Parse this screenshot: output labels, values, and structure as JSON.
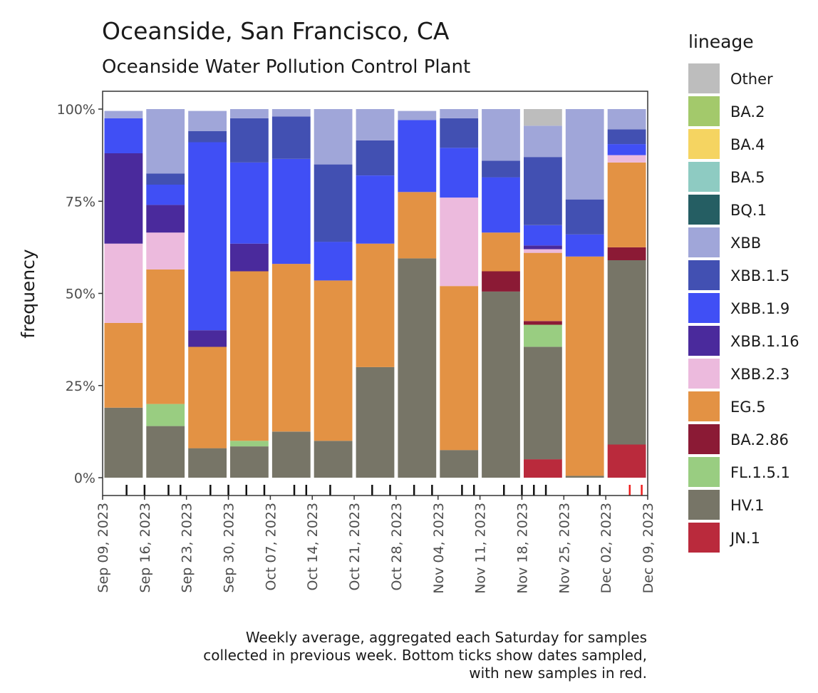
{
  "chart_data": {
    "type": "stacked-bar",
    "title": "Oceanside, San Francisco, CA",
    "subtitle": "Oceanside Water Pollution Control Plant",
    "ylabel": "frequency",
    "xlabel": "",
    "ylim": [
      0,
      1
    ],
    "yticks": [
      "0%",
      "25%",
      "50%",
      "75%",
      "100%"
    ],
    "x_tick_labels": [
      "Sep 09, 2023",
      "Sep 16, 2023",
      "Sep 23, 2023",
      "Sep 30, 2023",
      "Oct 07, 2023",
      "Oct 14, 2023",
      "Oct 21, 2023",
      "Oct 28, 2023",
      "Nov 04, 2023",
      "Nov 11, 2023",
      "Nov 18, 2023",
      "Nov 25, 2023",
      "Dec 02, 2023",
      "Dec 09, 2023"
    ],
    "legend_title": "lineage",
    "legend_position": "right",
    "caption": [
      "Weekly average, aggregated each Saturday for samples",
      "collected in previous week. Bottom ticks show dates sampled,",
      "with new samples in red."
    ],
    "lineages": [
      "Other",
      "BA.2",
      "BA.4",
      "BA.5",
      "BQ.1",
      "XBB",
      "XBB.1.5",
      "XBB.1.9",
      "XBB.1.16",
      "XBB.2.3",
      "EG.5",
      "BA.2.86",
      "FL.1.5.1",
      "HV.1",
      "JN.1"
    ],
    "colors": {
      "Other": "#bdbdbd",
      "BA.2": "#a3c96b",
      "BA.4": "#f5d461",
      "BA.5": "#8ecbc2",
      "BQ.1": "#255e63",
      "XBB": "#a0a6d9",
      "XBB.1.5": "#4250b2",
      "XBB.1.9": "#404ff5",
      "XBB.1.16": "#4a2a9c",
      "XBB.2.3": "#ecbadd",
      "EG.5": "#e39244",
      "BA.2.86": "#8b1a35",
      "FL.1.5.1": "#99cd81",
      "HV.1": "#777567",
      "JN.1": "#ba2a3c"
    },
    "weeks": [
      "Sep 16, 2023",
      "Sep 23, 2023",
      "Sep 30, 2023",
      "Oct 07, 2023",
      "Oct 14, 2023",
      "Oct 21, 2023",
      "Oct 28, 2023",
      "Nov 04, 2023",
      "Nov 11, 2023",
      "Nov 18, 2023",
      "Nov 25, 2023",
      "Dec 02, 2023",
      "Dec 09, 2023"
    ],
    "series": [
      {
        "name": "JN.1",
        "values": [
          0,
          0,
          0,
          0,
          0,
          0,
          0,
          0,
          0,
          0,
          0.05,
          0,
          0.09
        ]
      },
      {
        "name": "HV.1",
        "values": [
          0.19,
          0.14,
          0.08,
          0.085,
          0.125,
          0.1,
          0.3,
          0.595,
          0.075,
          0.505,
          0.305,
          0.005,
          0.5
        ]
      },
      {
        "name": "FL.1.5.1",
        "values": [
          0,
          0.06,
          0,
          0.015,
          0,
          0,
          0,
          0,
          0,
          0,
          0.06,
          0,
          0
        ]
      },
      {
        "name": "BA.2.86",
        "values": [
          0,
          0,
          0,
          0,
          0,
          0,
          0,
          0,
          0,
          0.055,
          0.01,
          0,
          0.035
        ]
      },
      {
        "name": "EG.5",
        "values": [
          0.23,
          0.365,
          0.275,
          0.46,
          0.455,
          0.435,
          0.335,
          0.18,
          0.445,
          0.105,
          0.185,
          0.595,
          0.23
        ]
      },
      {
        "name": "XBB.2.3",
        "values": [
          0.215,
          0.1,
          0,
          0,
          0,
          0,
          0,
          0,
          0.24,
          0,
          0.01,
          0,
          0.02
        ]
      },
      {
        "name": "XBB.1.16",
        "values": [
          0.245,
          0.075,
          0.045,
          0.075,
          0,
          0,
          0,
          0,
          0,
          0,
          0.01,
          0,
          0
        ]
      },
      {
        "name": "XBB.1.9",
        "values": [
          0.095,
          0.055,
          0.51,
          0.22,
          0.285,
          0.105,
          0.185,
          0.195,
          0.135,
          0.15,
          0.055,
          0.06,
          0.03
        ]
      },
      {
        "name": "XBB.1.5",
        "values": [
          0,
          0.03,
          0.03,
          0.12,
          0.115,
          0.21,
          0.095,
          0,
          0.08,
          0.045,
          0.185,
          0.095,
          0.04
        ]
      },
      {
        "name": "XBB",
        "values": [
          0.02,
          0.175,
          0.055,
          0.025,
          0.02,
          0.15,
          0.085,
          0.025,
          0.025,
          0.14,
          0.085,
          0.245,
          0.055
        ]
      },
      {
        "name": "Other",
        "values": [
          0,
          0,
          0,
          0,
          0,
          0,
          0,
          0,
          0,
          0,
          0.045,
          0,
          0
        ]
      }
    ],
    "sample_ticks": [
      {
        "date": "Sep 13, 2023",
        "new": false
      },
      {
        "date": "Sep 16, 2023",
        "new": false
      },
      {
        "date": "Sep 20, 2023",
        "new": false
      },
      {
        "date": "Sep 22, 2023",
        "new": false
      },
      {
        "date": "Sep 27, 2023",
        "new": false
      },
      {
        "date": "Sep 30, 2023",
        "new": false
      },
      {
        "date": "Oct 03, 2023",
        "new": false
      },
      {
        "date": "Oct 06, 2023",
        "new": false
      },
      {
        "date": "Oct 11, 2023",
        "new": false
      },
      {
        "date": "Oct 13, 2023",
        "new": false
      },
      {
        "date": "Oct 17, 2023",
        "new": false
      },
      {
        "date": "Oct 24, 2023",
        "new": false
      },
      {
        "date": "Oct 27, 2023",
        "new": false
      },
      {
        "date": "Oct 31, 2023",
        "new": false
      },
      {
        "date": "Nov 03, 2023",
        "new": false
      },
      {
        "date": "Nov 08, 2023",
        "new": false
      },
      {
        "date": "Nov 10, 2023",
        "new": false
      },
      {
        "date": "Nov 15, 2023",
        "new": false
      },
      {
        "date": "Nov 18, 2023",
        "new": false
      },
      {
        "date": "Nov 20, 2023",
        "new": false
      },
      {
        "date": "Nov 22, 2023",
        "new": false
      },
      {
        "date": "Nov 29, 2023",
        "new": false
      },
      {
        "date": "Dec 01, 2023",
        "new": false
      },
      {
        "date": "Dec 06, 2023",
        "new": true
      },
      {
        "date": "Dec 08, 2023",
        "new": true
      }
    ]
  }
}
